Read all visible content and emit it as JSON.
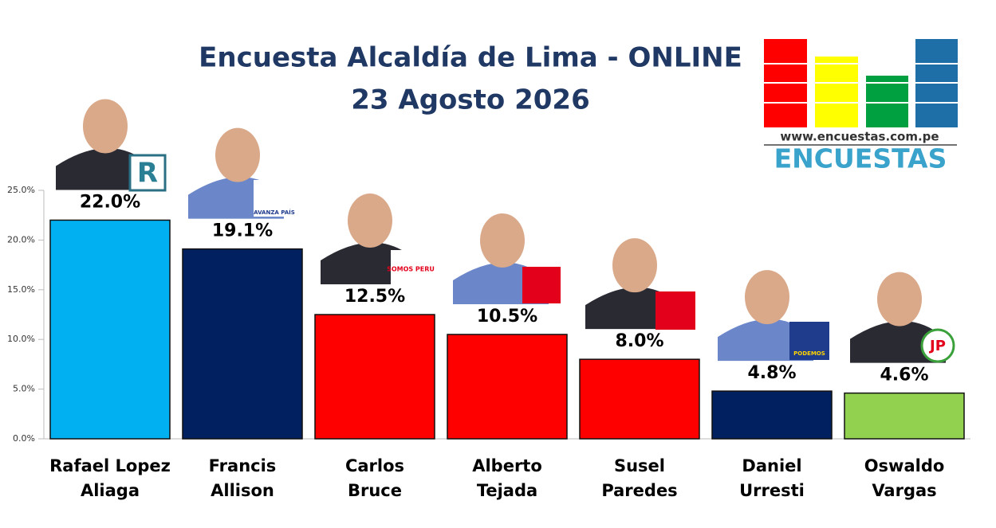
{
  "chart_data": {
    "type": "bar",
    "title": "Encuesta Alcaldía de Lima - ONLINE",
    "subtitle": "23 Agosto 2026",
    "categories": [
      [
        "Rafael Lopez",
        "Aliaga"
      ],
      [
        "Francis",
        "Allison"
      ],
      [
        "Carlos",
        "Bruce"
      ],
      [
        "Alberto",
        "Tejada"
      ],
      [
        "Susel",
        "Paredes"
      ],
      [
        "Daniel",
        "Urresti"
      ],
      [
        "Oswaldo",
        "Vargas"
      ]
    ],
    "values": [
      22.0,
      19.1,
      12.5,
      10.5,
      8.0,
      4.8,
      4.6
    ],
    "value_labels": [
      "22.0%",
      "19.1%",
      "12.5%",
      "10.5%",
      "8.0%",
      "4.8%",
      "4.6%"
    ],
    "colors": [
      "#00b0f0",
      "#002060",
      "#ff0000",
      "#ff0000",
      "#ff0000",
      "#002060",
      "#92d050"
    ],
    "ylim": [
      0,
      25
    ],
    "yticks": [
      {
        "value": 0,
        "label": "0.0%"
      },
      {
        "value": 5,
        "label": "5.0%"
      },
      {
        "value": 10,
        "label": "10.0%"
      },
      {
        "value": 15,
        "label": "15.0%"
      },
      {
        "value": 20,
        "label": "20.0%"
      },
      {
        "value": 25,
        "label": "25.0%"
      }
    ],
    "grid": false
  },
  "logo": {
    "url": "www.encuestas.com.pe",
    "name": "ENCUESTAS"
  },
  "party_logos": {
    "r": "R",
    "avanza": "AVANZA PAÍS",
    "somos": "SOMOS PERU",
    "podemos": "PODEMOS",
    "jp": "JP"
  }
}
